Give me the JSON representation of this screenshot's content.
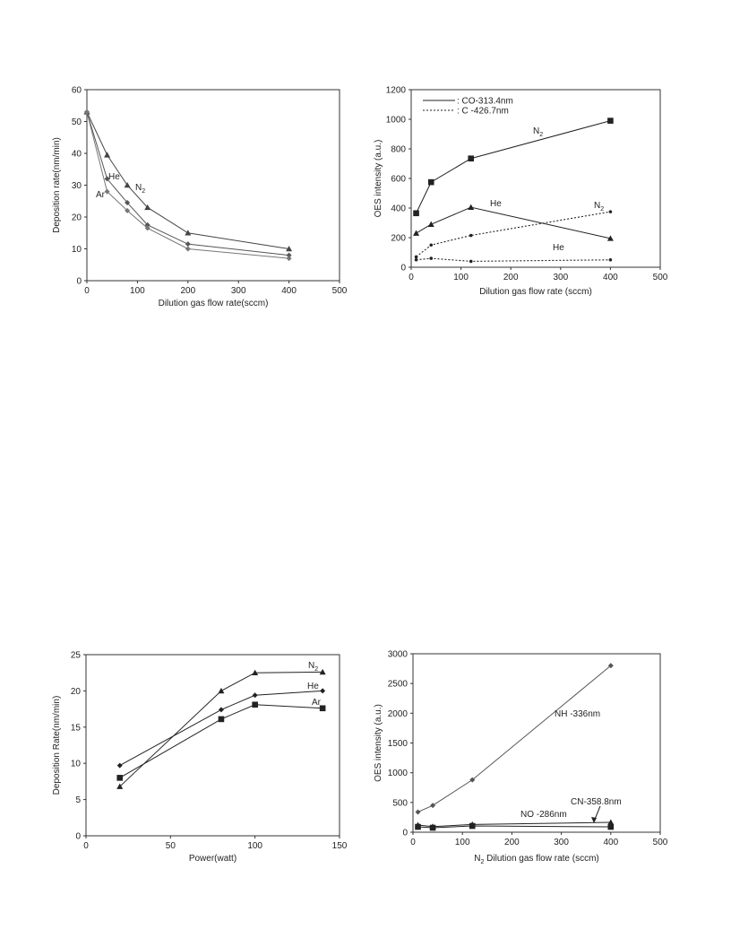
{
  "chart_data": [
    {
      "type": "line",
      "xlabel": "Dilution gas flow rate(sccm)",
      "ylabel": "Deposition rate(nm/min)",
      "xlim": [
        0,
        500
      ],
      "ylim": [
        0,
        60
      ],
      "xticks": [
        0,
        100,
        200,
        300,
        400,
        500
      ],
      "yticks": [
        0,
        10,
        20,
        30,
        40,
        50,
        60
      ],
      "series": [
        {
          "name": "N2",
          "label_text": "N",
          "label_sub": "2",
          "marker": "triangle",
          "color": "#444444",
          "x": [
            0,
            40,
            80,
            120,
            200,
            400
          ],
          "y": [
            53,
            39.5,
            30,
            23,
            15,
            10
          ]
        },
        {
          "name": "He",
          "label_text": "He",
          "marker": "diamond",
          "color": "#555555",
          "x": [
            0,
            40,
            80,
            120,
            200,
            400
          ],
          "y": [
            53,
            32,
            24.5,
            17.5,
            11.5,
            8
          ]
        },
        {
          "name": "Ar",
          "label_text": "Ar",
          "marker": "diamond",
          "color": "#777777",
          "x": [
            0,
            40,
            80,
            120,
            200,
            400
          ],
          "y": [
            53,
            28,
            22,
            16.5,
            10,
            7
          ]
        }
      ]
    },
    {
      "type": "line",
      "xlabel": "Dilution gas flow rate (sccm)",
      "ylabel": "OES intensity (a.u.)",
      "xlim": [
        0,
        500
      ],
      "ylim": [
        0,
        1200
      ],
      "xticks": [
        0,
        100,
        200,
        300,
        400,
        500
      ],
      "yticks": [
        0,
        200,
        400,
        600,
        800,
        1000,
        1200
      ],
      "legend": [
        {
          "label": ": CO-313.4nm",
          "style": "solid"
        },
        {
          "label": ": C  -426.7nm",
          "style": "dotted"
        }
      ],
      "series": [
        {
          "name": "N2",
          "label_text": "N",
          "label_sub": "2",
          "marker": "square",
          "style": "solid",
          "color": "#222222",
          "x": [
            10,
            40,
            120,
            400
          ],
          "y": [
            365,
            575,
            735,
            990
          ]
        },
        {
          "name": "He",
          "label_text": "He",
          "marker": "triangle",
          "style": "solid",
          "color": "#222222",
          "x": [
            10,
            40,
            120,
            400
          ],
          "y": [
            230,
            290,
            405,
            195
          ]
        },
        {
          "name": "N2",
          "label_text": "N",
          "label_sub": "2",
          "marker": "dot",
          "style": "dotted",
          "color": "#222222",
          "x": [
            10,
            40,
            120,
            400
          ],
          "y": [
            70,
            150,
            215,
            375
          ]
        },
        {
          "name": "He",
          "label_text": "He",
          "marker": "dot",
          "style": "dotted",
          "color": "#222222",
          "x": [
            10,
            40,
            120,
            400
          ],
          "y": [
            50,
            60,
            40,
            50
          ]
        }
      ]
    },
    {
      "type": "line",
      "xlabel": "Power(watt)",
      "ylabel": "Deposition Rate(nm/min)",
      "xlim": [
        0,
        150
      ],
      "ylim": [
        0,
        25
      ],
      "xticks": [
        0,
        50,
        100,
        150
      ],
      "yticks": [
        0,
        5,
        10,
        15,
        20,
        25
      ],
      "series": [
        {
          "name": "N2",
          "label_text": "N",
          "label_sub": "2",
          "marker": "triangle",
          "color": "#222222",
          "x": [
            20,
            80,
            100,
            140
          ],
          "y": [
            6.8,
            20,
            22.5,
            22.6
          ]
        },
        {
          "name": "He",
          "label_text": "He",
          "marker": "diamond",
          "color": "#222222",
          "x": [
            20,
            80,
            100,
            140
          ],
          "y": [
            9.7,
            17.4,
            19.4,
            20
          ]
        },
        {
          "name": "Ar",
          "label_text": "Ar",
          "marker": "square",
          "color": "#222222",
          "x": [
            20,
            80,
            100,
            140
          ],
          "y": [
            8,
            16.1,
            18.1,
            17.6
          ]
        }
      ]
    },
    {
      "type": "line",
      "xlabel_text": "N",
      "xlabel_sub": "2",
      "xlabel_rest": " Dilution gas flow rate (sccm)",
      "ylabel": "OES intensity (a.u.)",
      "xlim": [
        0,
        500
      ],
      "ylim": [
        0,
        3000
      ],
      "xticks": [
        0,
        100,
        200,
        300,
        400,
        500
      ],
      "yticks": [
        0,
        500,
        1000,
        1500,
        2000,
        2500,
        3000
      ],
      "series": [
        {
          "name": "NH -336nm",
          "label_text": "NH -336nm",
          "marker": "diamond",
          "color": "#555555",
          "x": [
            10,
            40,
            120,
            400
          ],
          "y": [
            340,
            450,
            880,
            2800
          ]
        },
        {
          "name": "CN-358.8nm",
          "label_text": "CN-358.8nm",
          "marker": "triangle",
          "color": "#222222",
          "x": [
            10,
            40,
            120,
            400
          ],
          "y": [
            120,
            95,
            130,
            165
          ]
        },
        {
          "name": "NO -286nm",
          "label_text": "NO -286nm",
          "marker": "square",
          "color": "#222222",
          "x": [
            10,
            40,
            120,
            400
          ],
          "y": [
            90,
            75,
            105,
            90
          ]
        }
      ]
    }
  ]
}
